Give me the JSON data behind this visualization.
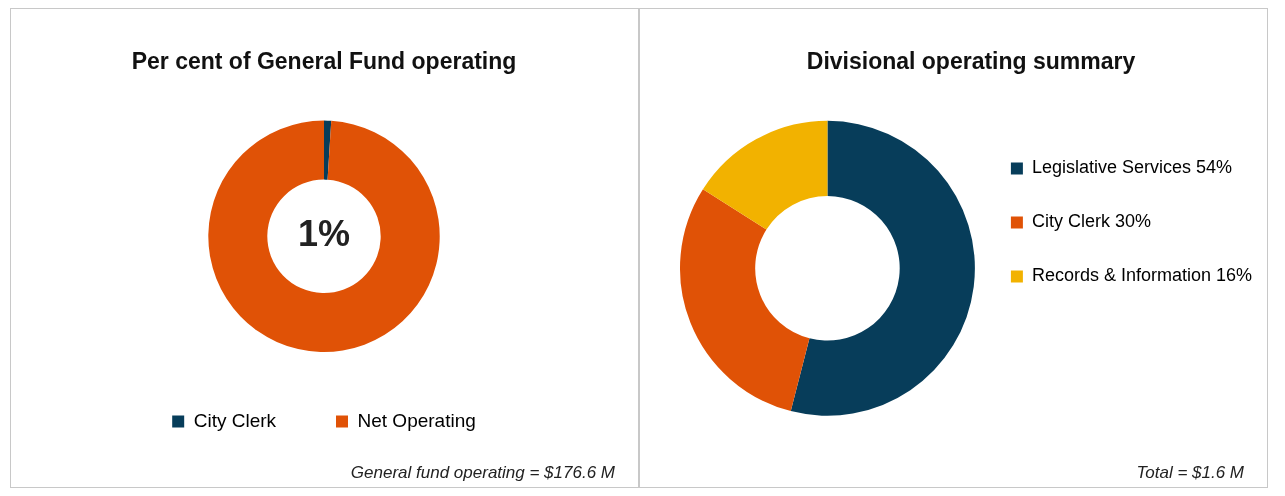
{
  "chart_data": [
    {
      "type": "donut",
      "title": "Per cent of General Fund operating",
      "categories": [
        "City Clerk",
        "Net Operating"
      ],
      "values": [
        1,
        99
      ],
      "colors": [
        "#073d5a",
        "#e05206"
      ],
      "value_labels": [
        "1%",
        null
      ],
      "legend": "bottom",
      "annotations": [
        "General fund operating = $176.6 M"
      ]
    },
    {
      "type": "donut",
      "title": "Divisional operating summary",
      "categories": [
        "Legislative Services",
        "City Clerk",
        "Records & Information"
      ],
      "values": [
        54,
        30,
        16
      ],
      "colors": [
        "#073d5a",
        "#e05206",
        "#f2b200"
      ],
      "value_labels": [
        "54%",
        "30%",
        "16%"
      ],
      "legend": "right",
      "annotations": [
        "Total = $1.6 M"
      ]
    }
  ]
}
